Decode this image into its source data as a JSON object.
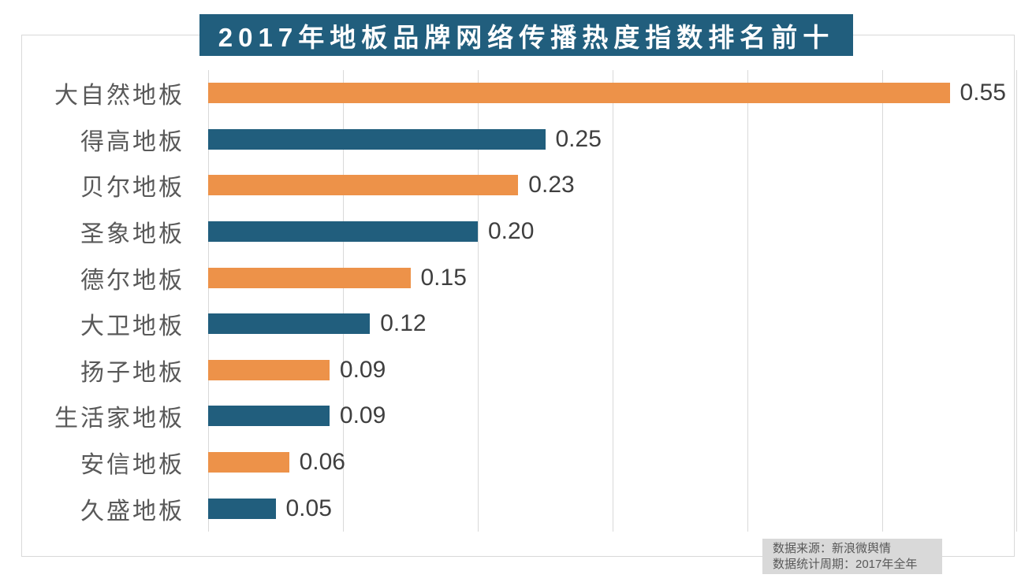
{
  "title": "2017年地板品牌网络传播热度指数排名前十",
  "colors": {
    "accent_blue": "#215E7D",
    "accent_orange": "#ED9249",
    "gridline": "#D9D9D9",
    "category_label_text": "#595959",
    "value_label_text": "#3F3F3F",
    "footer_bg": "#D9D9D9",
    "title_text": "#FFFFFF"
  },
  "chart_data": {
    "type": "bar",
    "orientation": "horizontal",
    "title": "2017年地板品牌网络传播热度指数排名前十",
    "categories": [
      "大自然地板",
      "得高地板",
      "贝尔地板",
      "圣象地板",
      "德尔地板",
      "大卫地板",
      "扬子地板",
      "生活家地板",
      "安信地板",
      "久盛地板"
    ],
    "values": [
      0.55,
      0.25,
      0.23,
      0.2,
      0.15,
      0.12,
      0.09,
      0.09,
      0.06,
      0.05
    ],
    "data_labels": [
      "0.55",
      "0.25",
      "0.23",
      "0.20",
      "0.15",
      "0.12",
      "0.09",
      "0.09",
      "0.06",
      "0.05"
    ],
    "xlim": [
      0,
      0.6
    ],
    "gridline_interval": 0.1,
    "grid": true,
    "legend": false,
    "bar_colors_alternating": [
      "#ED9249",
      "#215E7D"
    ],
    "xlabel": "",
    "ylabel": "",
    "source_note": "数据来源：新浪微舆情",
    "period_note": "数据统计周期：2017年全年"
  }
}
